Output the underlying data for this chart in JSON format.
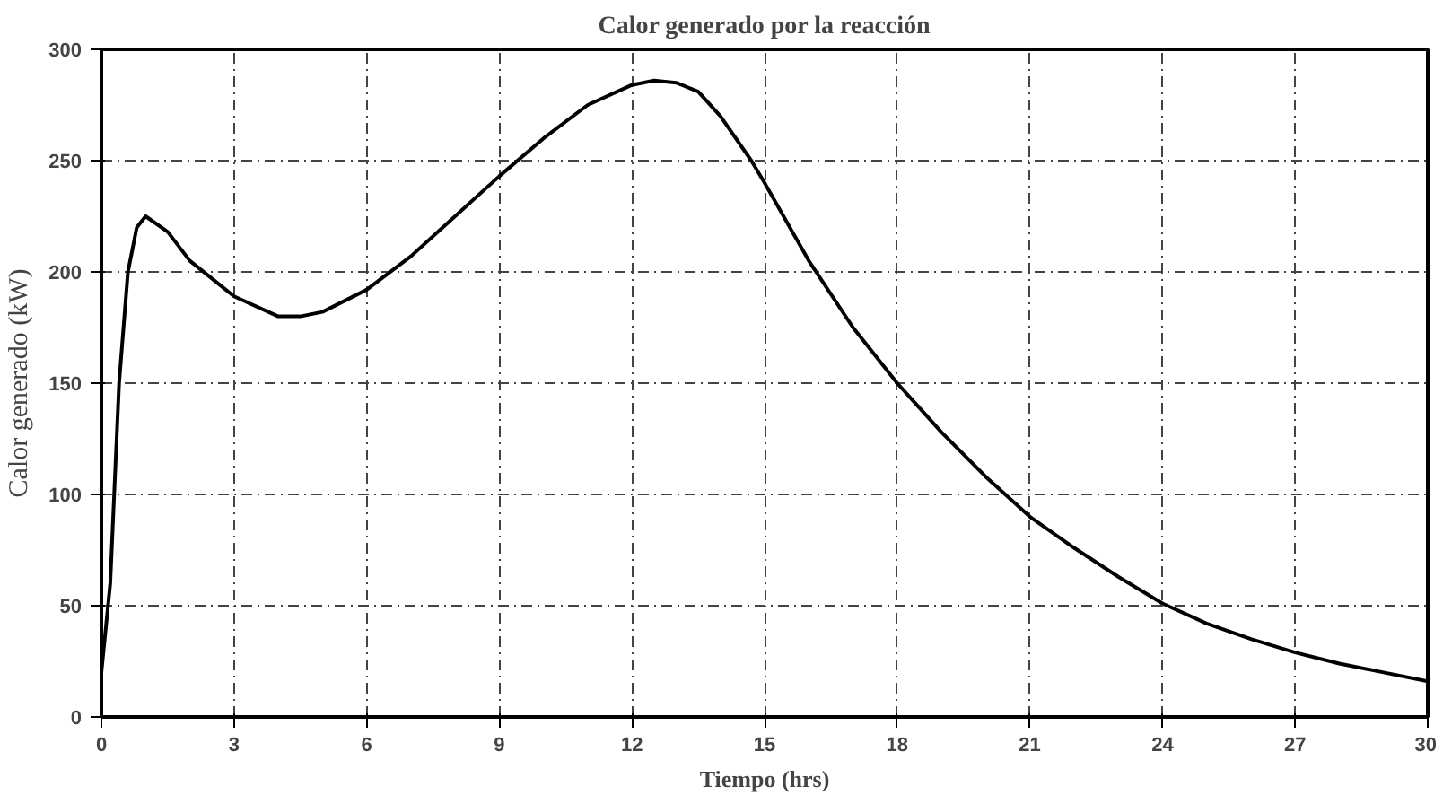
{
  "chart_data": {
    "type": "line",
    "title": "Calor generado por la reacción",
    "xlabel": "Tiempo (hrs)",
    "ylabel": "Calor generado (kW)",
    "x": [
      0,
      0.2,
      0.4,
      0.6,
      0.8,
      1,
      1.5,
      2,
      3,
      4,
      4.5,
      5,
      6,
      7,
      8,
      9,
      10,
      11,
      12,
      12.5,
      13,
      13.5,
      14,
      14.7,
      15,
      16,
      17,
      18,
      19,
      20,
      21,
      22,
      23,
      24,
      25,
      26,
      27,
      28,
      29,
      30
    ],
    "series": [
      {
        "color": "#000000",
        "values": [
          20,
          60,
          150,
          200,
          220,
          225,
          218,
          205,
          189,
          180,
          180,
          182,
          192,
          207,
          225,
          243,
          260,
          275,
          284,
          286,
          285,
          281,
          270,
          250,
          240,
          205,
          175,
          150,
          128,
          108,
          90,
          76,
          63,
          51,
          42,
          35,
          29,
          24,
          20,
          16
        ]
      }
    ],
    "xlim": [
      0,
      30
    ],
    "ylim": [
      0,
      300
    ],
    "xticks": [
      0,
      3,
      6,
      9,
      12,
      15,
      18,
      21,
      24,
      27,
      30
    ],
    "yticks": [
      0,
      50,
      100,
      150,
      200,
      250,
      300
    ],
    "grid": true,
    "line_style": "solid",
    "marker": "none"
  }
}
